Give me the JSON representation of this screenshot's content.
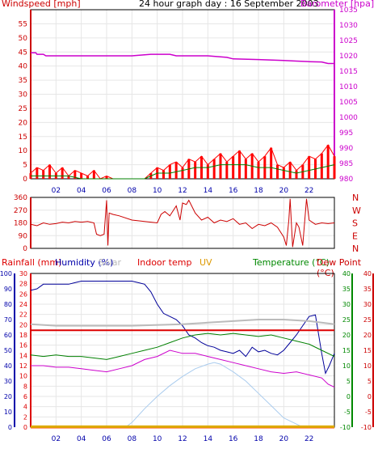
{
  "header": {
    "windspeed_label": "Windspeed [mph]",
    "title": "24 hour graph day : 16 September 2003",
    "barometer_label": "Barometer [hpa]"
  },
  "mid_header": {
    "rainfall_label": "Rainfall (mm)",
    "humidity_label": "Humidity (%)",
    "solar_label": "Solar",
    "indoor_label": "Indoor temp",
    "uv_label": "UV",
    "temperature_label": "Temperature (°C)",
    "dewpoint_label": "Dew Point (°C)"
  },
  "colors": {
    "wind_speed": "#ff0000",
    "wind_gust_base": "#008000",
    "barometer": "#cc00cc",
    "wind_dir": "#cc0000",
    "humidity": "#000099",
    "solar": "#aaccee",
    "indoor": "#dd0000",
    "temperature": "#008000",
    "dewpoint": "#cc00cc",
    "uv": "#ddaa00",
    "rain_axis": "#dd0000",
    "humidity_axis": "#0000aa",
    "temp_axis": "#008800",
    "dew_axis": "#cc0000",
    "grid": "#e6e6e6"
  },
  "chart_data": [
    {
      "type": "line",
      "name": "wind-barometer",
      "x_ticks": [
        "02",
        "04",
        "06",
        "08",
        "10",
        "12",
        "14",
        "16",
        "18",
        "20",
        "22"
      ],
      "x_range": [
        0,
        24
      ],
      "left_axis": {
        "label": "Windspeed [mph]",
        "range": [
          0,
          60
        ],
        "ticks": [
          0,
          5,
          10,
          15,
          20,
          25,
          30,
          35,
          40,
          45,
          50,
          55
        ]
      },
      "right_axis": {
        "label": "Barometer [hpa]",
        "range": [
          980,
          1035
        ],
        "ticks": [
          980,
          985,
          990,
          995,
          1000,
          1005,
          1010,
          1015,
          1020,
          1025,
          1030,
          1035
        ]
      },
      "series": [
        {
          "name": "Barometer",
          "axis": "right",
          "x": [
            0,
            0.4,
            0.5,
            1.0,
            1.2,
            4.0,
            8.0,
            9.5,
            10.0,
            11.0,
            11.5,
            14.0,
            15.5,
            16.0,
            18.0,
            20.0,
            21.0,
            22.0,
            23.0,
            23.5,
            24.0
          ],
          "y": [
            1021,
            1021,
            1020.5,
            1020.5,
            1020,
            1020,
            1020,
            1020.5,
            1020.5,
            1020.5,
            1020,
            1020,
            1019.5,
            1019,
            1018.8,
            1018.5,
            1018.3,
            1018.1,
            1018,
            1017.5,
            1017.5
          ]
        },
        {
          "name": "Windspeed",
          "axis": "left",
          "x": [
            0,
            0.5,
            1.0,
            1.5,
            2.0,
            2.5,
            3.0,
            3.5,
            4.0,
            4.5,
            5.0,
            5.5,
            6.0,
            6.5,
            7.0,
            7.5,
            8.0,
            8.5,
            9.0,
            9.5,
            10.0,
            10.5,
            11.0,
            11.5,
            12.0,
            12.5,
            13.0,
            13.5,
            14.0,
            14.5,
            15.0,
            15.5,
            16.0,
            16.5,
            17.0,
            17.5,
            18.0,
            18.5,
            19.0,
            19.5,
            20.0,
            20.5,
            21.0,
            21.5,
            22.0,
            22.5,
            23.0,
            23.5,
            24.0
          ],
          "y": [
            2,
            4,
            3,
            5,
            2,
            4,
            1,
            3,
            2,
            1,
            3,
            0,
            1,
            0,
            0,
            0,
            0,
            0,
            0,
            2,
            4,
            3,
            5,
            6,
            4,
            7,
            6,
            8,
            5,
            7,
            9,
            6,
            8,
            10,
            7,
            9,
            6,
            8,
            11,
            5,
            4,
            6,
            3,
            5,
            8,
            7,
            9,
            12,
            8
          ]
        },
        {
          "name": "Wind base",
          "axis": "left",
          "x": [
            0,
            1,
            2,
            3,
            4,
            5,
            6,
            7,
            8,
            9,
            9.5,
            10,
            11,
            12,
            13,
            14,
            15,
            16,
            17,
            18,
            19,
            20,
            21,
            22,
            23,
            24
          ],
          "y": [
            1,
            1,
            1,
            1,
            0,
            0,
            0,
            0,
            0,
            0,
            1,
            2,
            2,
            3,
            4,
            4,
            5,
            5,
            5,
            4,
            4,
            3,
            2,
            3,
            4,
            5
          ]
        }
      ]
    },
    {
      "type": "line",
      "name": "wind-direction",
      "x_range": [
        0,
        24
      ],
      "left_axis": {
        "range": [
          0,
          360
        ],
        "ticks": [
          0,
          90,
          180,
          270,
          360
        ]
      },
      "right_axis": {
        "labels": [
          "N",
          "W",
          "S",
          "E",
          "N"
        ]
      },
      "series": [
        {
          "name": "Wind direction",
          "x": [
            0,
            0.5,
            1.0,
            1.5,
            2.0,
            2.5,
            3.0,
            3.5,
            4.0,
            4.5,
            5.0,
            5.2,
            5.5,
            5.8,
            6.0,
            6.1,
            6.2,
            6.5,
            7.0,
            8.0,
            9.0,
            9.5,
            10.0,
            10.3,
            10.6,
            11.0,
            11.5,
            11.8,
            12.0,
            12.3,
            12.5,
            13.0,
            13.5,
            14.0,
            14.5,
            15.0,
            15.5,
            16.0,
            16.5,
            17.0,
            17.5,
            18.0,
            18.5,
            19.0,
            19.5,
            20.0,
            20.2,
            20.4,
            20.5,
            20.7,
            21.0,
            21.2,
            21.5,
            21.8,
            22.0,
            22.5,
            23.0,
            23.5,
            24.0
          ],
          "y": [
            170,
            160,
            180,
            170,
            175,
            185,
            180,
            190,
            185,
            190,
            180,
            100,
            90,
            100,
            340,
            20,
            250,
            240,
            230,
            200,
            190,
            185,
            180,
            240,
            260,
            230,
            300,
            200,
            320,
            310,
            340,
            250,
            200,
            220,
            180,
            200,
            190,
            210,
            170,
            180,
            140,
            170,
            160,
            180,
            150,
            80,
            20,
            200,
            350,
            10,
            180,
            150,
            20,
            350,
            200,
            170,
            180,
            175,
            180
          ]
        }
      ]
    },
    {
      "type": "line",
      "name": "humidity-temperature",
      "x_ticks": [
        "02",
        "04",
        "06",
        "08",
        "10",
        "12",
        "14",
        "16",
        "18",
        "20",
        "22"
      ],
      "x_range": [
        0,
        24
      ],
      "axes": {
        "humidity": {
          "label": "Humidity (%)",
          "range": [
            0,
            100
          ],
          "ticks": [
            0,
            10,
            20,
            30,
            40,
            50,
            60,
            70,
            80,
            90,
            100
          ]
        },
        "rainfall": {
          "label": "Rainfall (mm)",
          "range": [
            0,
            30
          ],
          "ticks": [
            0,
            2,
            4,
            6,
            8,
            10,
            12,
            14,
            16,
            18,
            20,
            22,
            24,
            26,
            28,
            30
          ]
        },
        "temperature": {
          "label": "Temperature (°C)",
          "range": [
            -10,
            40
          ],
          "ticks": [
            -10,
            -5,
            0,
            5,
            10,
            15,
            20,
            25,
            30,
            35,
            40
          ]
        },
        "dewpoint": {
          "label": "Dew Point (°C)",
          "range": [
            -10,
            40
          ],
          "ticks": [
            -10,
            -5,
            0,
            5,
            10,
            15,
            20,
            25,
            30,
            35,
            40
          ]
        }
      },
      "series": [
        {
          "name": "Humidity",
          "axis": "humidity",
          "x": [
            0,
            0.5,
            1,
            2,
            3,
            3.5,
            4,
            6,
            7,
            8,
            8.5,
            9,
            9.5,
            10,
            10.5,
            11,
            11.5,
            12,
            12.5,
            13,
            13.5,
            14,
            14.5,
            15,
            15.5,
            16,
            16.5,
            17,
            17.5,
            18,
            18.5,
            19,
            19.5,
            20,
            20.5,
            21,
            21.5,
            22,
            22.5,
            23,
            23.3,
            23.6,
            24
          ],
          "y": [
            89,
            90,
            93,
            93,
            93,
            94,
            95,
            95,
            95,
            95,
            94,
            93,
            88,
            80,
            74,
            72,
            70,
            66,
            60,
            58,
            55,
            53,
            52,
            50,
            49,
            48,
            50,
            46,
            52,
            49,
            50,
            48,
            47,
            50,
            55,
            60,
            66,
            72,
            73,
            48,
            35,
            40,
            48
          ]
        },
        {
          "name": "Solar",
          "axis": "humidity",
          "x": [
            0,
            7.5,
            8,
            9,
            10,
            11,
            12,
            13,
            14,
            14.5,
            15,
            16,
            17,
            18,
            19,
            20,
            21,
            21.5,
            24
          ],
          "y": [
            0,
            0,
            3,
            12,
            20,
            27,
            33,
            38,
            41,
            42,
            41,
            36,
            30,
            22,
            14,
            6,
            2,
            0,
            0
          ]
        },
        {
          "name": "Indoor temp",
          "axis": "temperature",
          "x": [
            0,
            24
          ],
          "y": [
            21.5,
            21.5
          ]
        },
        {
          "name": "Indoor upper",
          "axis": "temperature",
          "x": [
            0,
            2,
            4,
            8,
            12,
            14,
            16,
            18,
            20,
            22,
            23,
            24
          ],
          "y": [
            23.5,
            23,
            23,
            23,
            23.5,
            24,
            24.5,
            25,
            25,
            24.5,
            24,
            23.5
          ]
        },
        {
          "name": "Temperature",
          "axis": "temperature",
          "x": [
            0,
            1,
            2,
            3,
            4,
            5,
            6,
            7,
            8,
            9,
            10,
            11,
            12,
            13,
            14,
            15,
            16,
            17,
            18,
            19,
            20,
            21,
            22,
            23,
            24
          ],
          "y": [
            13.5,
            13,
            13.5,
            13,
            13,
            12.5,
            12,
            13,
            14,
            15,
            16,
            17.5,
            19,
            20,
            20.5,
            20,
            20.5,
            20,
            19.5,
            20,
            19,
            18,
            17,
            15,
            13
          ]
        },
        {
          "name": "Dew Point",
          "axis": "dewpoint",
          "x": [
            0,
            1,
            2,
            3,
            4,
            5,
            6,
            7,
            8,
            9,
            10,
            11,
            12,
            13,
            14,
            15,
            16,
            17,
            18,
            19,
            20,
            21,
            22,
            23,
            23.5,
            24
          ],
          "y": [
            10,
            10,
            9.5,
            9.5,
            9,
            8.5,
            8,
            9,
            10,
            12,
            13,
            15,
            14,
            14,
            13,
            12,
            11,
            10,
            9,
            8,
            7.5,
            8,
            7,
            6,
            4,
            3
          ]
        },
        {
          "name": "Rainfall",
          "axis": "rainfall",
          "x": [
            0,
            24
          ],
          "y": [
            0,
            0
          ]
        },
        {
          "name": "UV",
          "axis": "humidity",
          "x": [
            0,
            24
          ],
          "y": [
            0.3,
            0.3
          ]
        }
      ]
    }
  ]
}
